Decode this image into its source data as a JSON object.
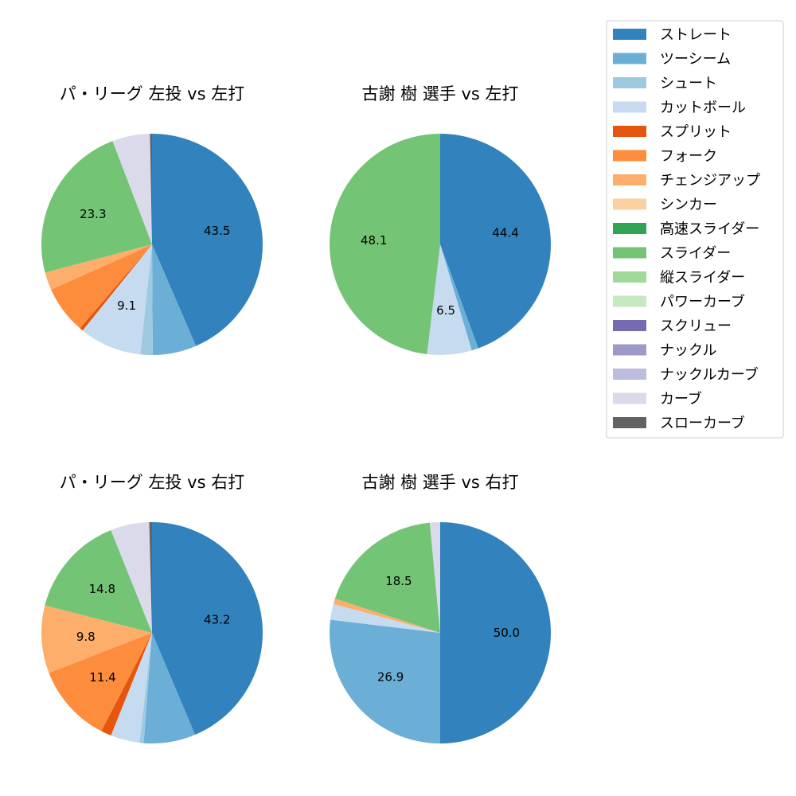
{
  "pitch_types": [
    {
      "name": "ストレート",
      "color": "#3182bd"
    },
    {
      "name": "ツーシーム",
      "color": "#6baed6"
    },
    {
      "name": "シュート",
      "color": "#9ecae1"
    },
    {
      "name": "カットボール",
      "color": "#c6dbef"
    },
    {
      "name": "スプリット",
      "color": "#e6550d"
    },
    {
      "name": "フォーク",
      "color": "#fd8d3c"
    },
    {
      "name": "チェンジアップ",
      "color": "#fdae6b"
    },
    {
      "name": "シンカー",
      "color": "#fdd0a2"
    },
    {
      "name": "高速スライダー",
      "color": "#31a354"
    },
    {
      "name": "スライダー",
      "color": "#74c476"
    },
    {
      "name": "縦スライダー",
      "color": "#a1d99b"
    },
    {
      "name": "パワーカーブ",
      "color": "#c7e9c0"
    },
    {
      "name": "スクリュー",
      "color": "#756bb1"
    },
    {
      "name": "ナックル",
      "color": "#9e9ac8"
    },
    {
      "name": "ナックルカーブ",
      "color": "#bcbddc"
    },
    {
      "name": "カーブ",
      "color": "#dadaeb"
    },
    {
      "name": "スローカーブ",
      "color": "#636363"
    }
  ],
  "chart_data": [
    {
      "type": "pie",
      "title": "パ・リーグ 左投 vs 左打",
      "categories": [
        "ストレート",
        "ツーシーム",
        "シュート",
        "カットボール",
        "スプリット",
        "フォーク",
        "チェンジアップ",
        "スライダー",
        "カーブ",
        "スローカーブ"
      ],
      "values": [
        43.5,
        6.4,
        1.8,
        9.1,
        0.5,
        7.0,
        2.6,
        23.3,
        5.5,
        0.3
      ],
      "labels": [
        "43.5",
        "",
        "",
        "9.1",
        "",
        "",
        "",
        "23.3",
        "",
        ""
      ]
    },
    {
      "type": "pie",
      "title": "古謝 樹 選手 vs 左打",
      "categories": [
        "ストレート",
        "ツーシーム",
        "カットボール",
        "スライダー"
      ],
      "values": [
        44.4,
        1.0,
        6.5,
        48.1
      ],
      "labels": [
        "44.4",
        "",
        "6.5",
        "48.1"
      ]
    },
    {
      "type": "pie",
      "title": "パ・リーグ 左投 vs 右打",
      "categories": [
        "ストレート",
        "ツーシーム",
        "シュート",
        "カットボール",
        "スプリット",
        "フォーク",
        "チェンジアップ",
        "スライダー",
        "カーブ",
        "スローカーブ"
      ],
      "values": [
        43.2,
        7.5,
        0.6,
        4.2,
        1.5,
        11.4,
        9.8,
        14.8,
        5.6,
        0.4
      ],
      "labels": [
        "43.2",
        "",
        "",
        "",
        "",
        "11.4",
        "9.8",
        "14.8",
        "",
        ""
      ]
    },
    {
      "type": "pie",
      "title": "古謝 樹 選手 vs 右打",
      "categories": [
        "ストレート",
        "ツーシーム",
        "カットボール",
        "チェンジアップ",
        "スライダー",
        "カーブ"
      ],
      "values": [
        50.0,
        26.9,
        2.3,
        0.8,
        18.5,
        1.5
      ],
      "labels": [
        "50.0",
        "26.9",
        "",
        "",
        "18.5",
        ""
      ]
    }
  ]
}
